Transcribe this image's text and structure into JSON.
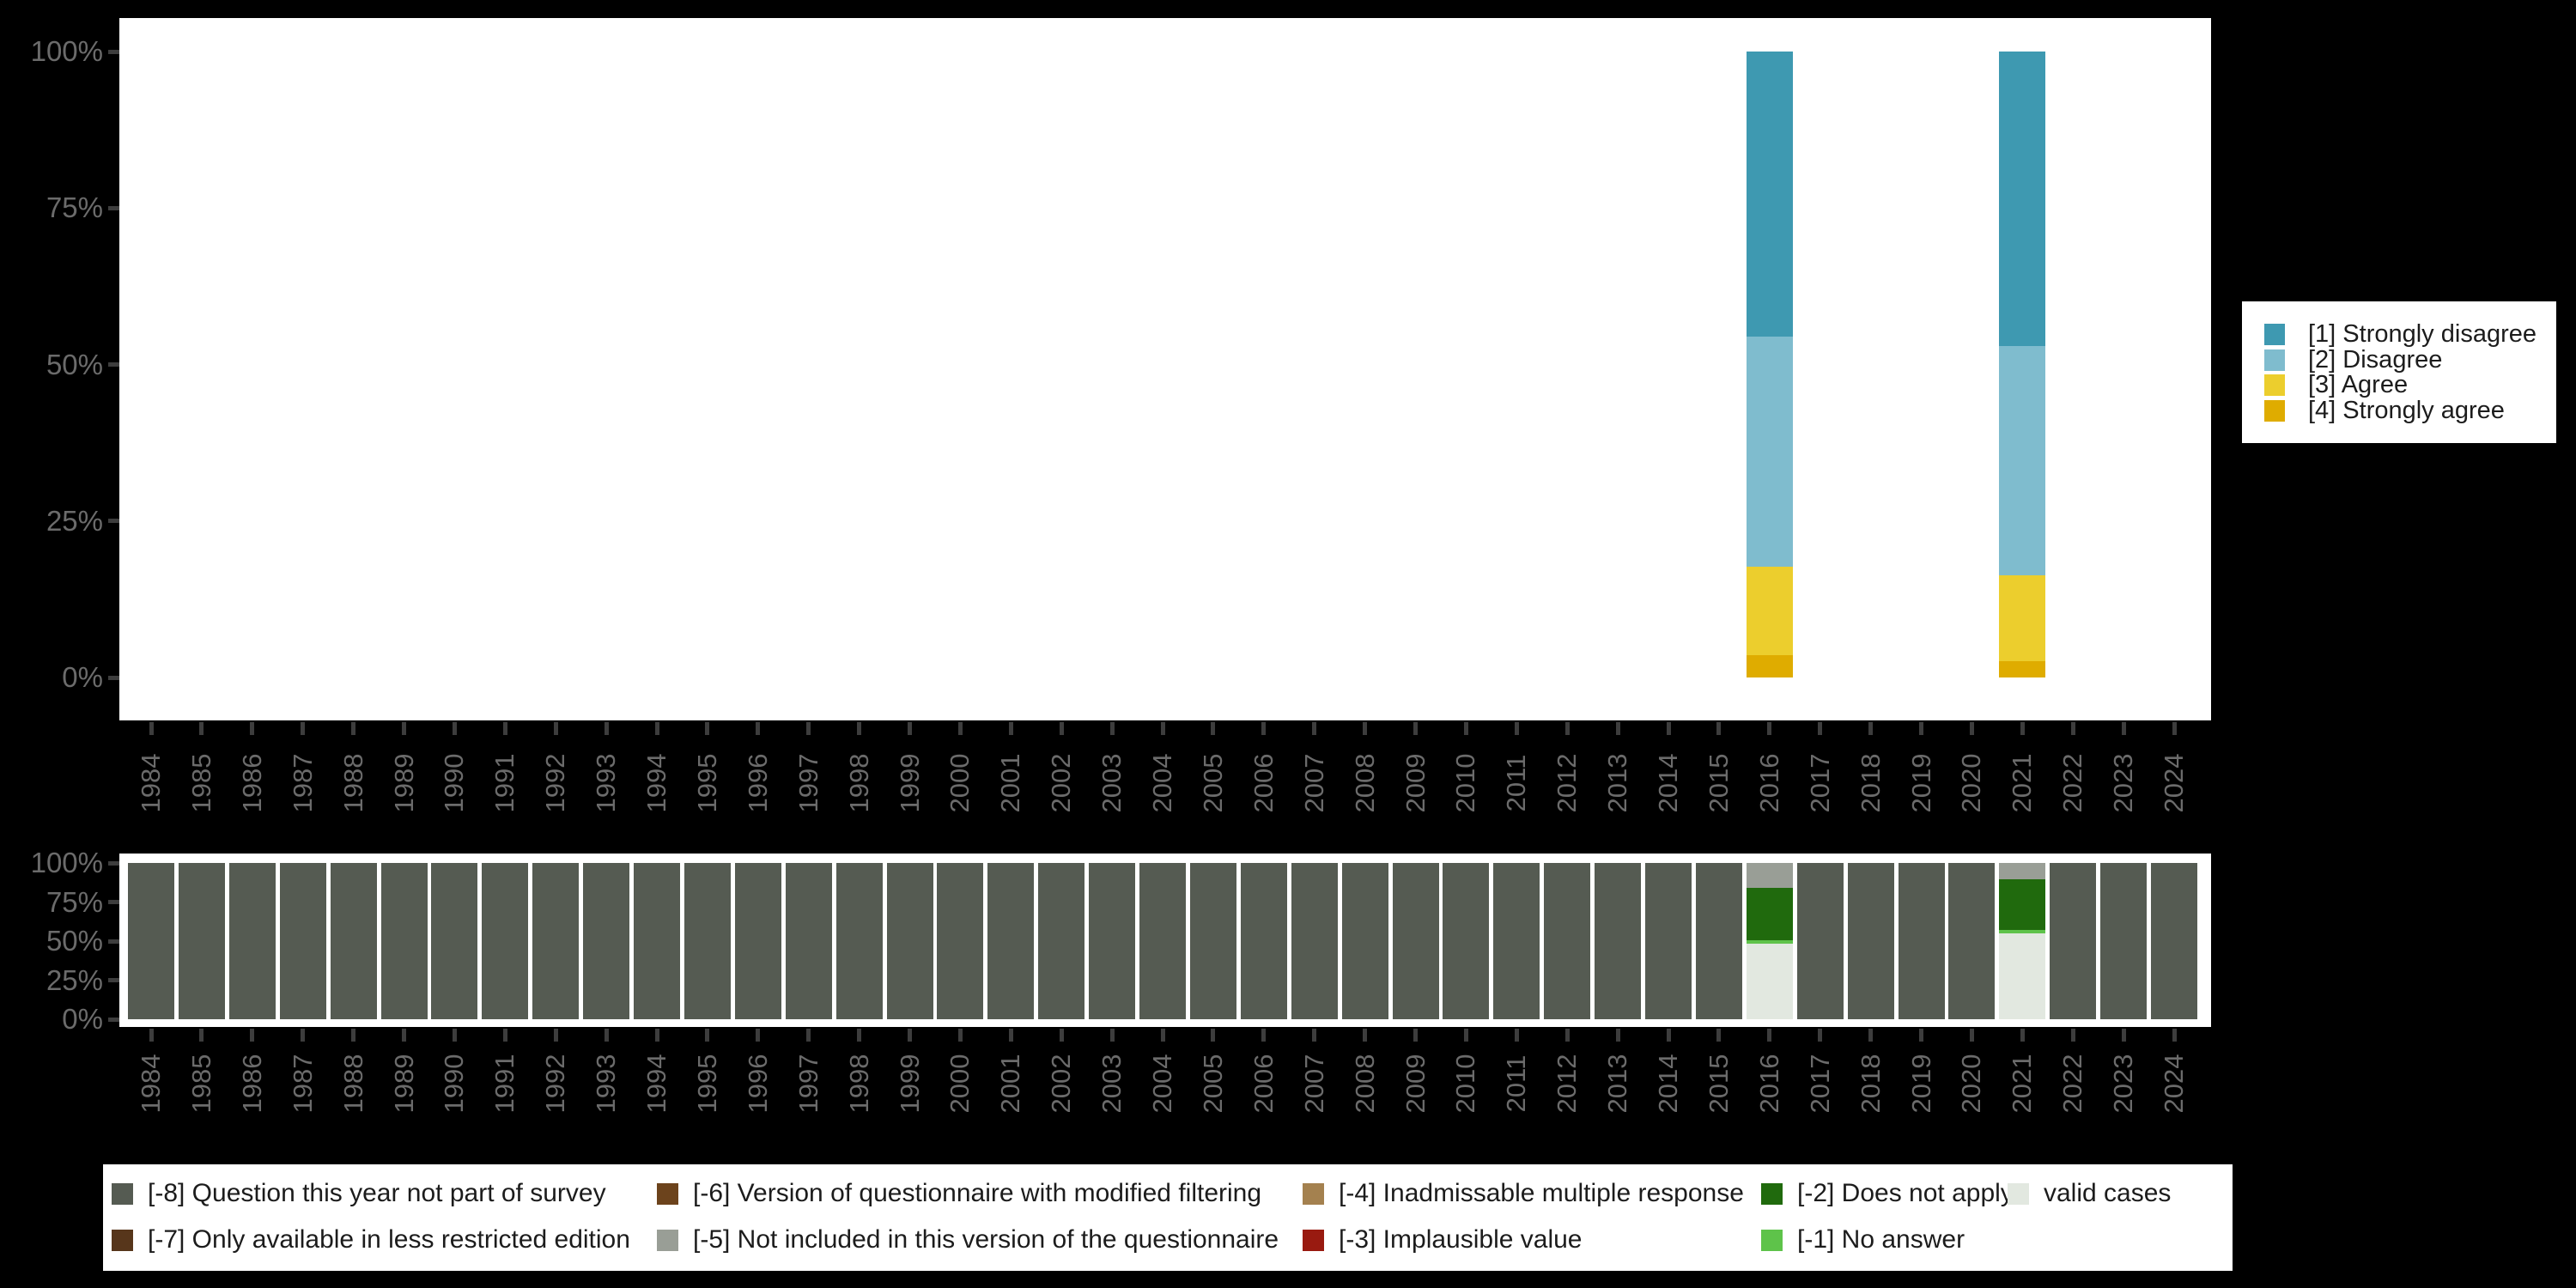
{
  "years": [
    "1984",
    "1985",
    "1986",
    "1987",
    "1988",
    "1989",
    "1990",
    "1991",
    "1992",
    "1993",
    "1994",
    "1995",
    "1996",
    "1997",
    "1998",
    "1999",
    "2000",
    "2001",
    "2002",
    "2003",
    "2004",
    "2005",
    "2006",
    "2007",
    "2008",
    "2009",
    "2010",
    "2011",
    "2012",
    "2013",
    "2014",
    "2015",
    "2016",
    "2017",
    "2018",
    "2019",
    "2020",
    "2021",
    "2022",
    "2023",
    "2024"
  ],
  "chart_data": [
    {
      "id": "response-distribution",
      "type": "bar",
      "stacked": true,
      "title": "",
      "xlabel": "",
      "ylabel": "",
      "ylim": [
        0,
        100
      ],
      "grid": false,
      "legend_position": "right",
      "x": [
        "1984",
        "1985",
        "1986",
        "1987",
        "1988",
        "1989",
        "1990",
        "1991",
        "1992",
        "1993",
        "1994",
        "1995",
        "1996",
        "1997",
        "1998",
        "1999",
        "2000",
        "2001",
        "2002",
        "2003",
        "2004",
        "2005",
        "2006",
        "2007",
        "2008",
        "2009",
        "2010",
        "2011",
        "2012",
        "2013",
        "2014",
        "2015",
        "2016",
        "2017",
        "2018",
        "2019",
        "2020",
        "2021",
        "2022",
        "2023",
        "2024"
      ],
      "y_ticks": [
        {
          "label": "100%",
          "value": 100
        },
        {
          "label": "75%",
          "value": 75
        },
        {
          "label": "50%",
          "value": 50
        },
        {
          "label": "25%",
          "value": 25
        },
        {
          "label": "0%",
          "value": 0
        }
      ],
      "series": [
        {
          "name": "[1] Strongly disagree",
          "color": "#3e99b1",
          "values": {
            "2016": 45.6,
            "2021": 47.0
          }
        },
        {
          "name": "[2] Disagree",
          "color": "#7fbcce",
          "values": {
            "2016": 36.7,
            "2021": 36.7
          }
        },
        {
          "name": "[3] Agree",
          "color": "#ecce2d",
          "values": {
            "2016": 14.2,
            "2021": 13.7
          }
        },
        {
          "name": "[4] Strongly agree",
          "color": "#dfac00",
          "values": {
            "2016": 3.5,
            "2021": 2.6
          }
        }
      ]
    },
    {
      "id": "missing-values-distribution",
      "type": "bar",
      "stacked": true,
      "title": "",
      "xlabel": "",
      "ylabel": "",
      "ylim": [
        0,
        100
      ],
      "grid": false,
      "legend_position": "bottom",
      "x": [
        "1984",
        "1985",
        "1986",
        "1987",
        "1988",
        "1989",
        "1990",
        "1991",
        "1992",
        "1993",
        "1994",
        "1995",
        "1996",
        "1997",
        "1998",
        "1999",
        "2000",
        "2001",
        "2002",
        "2003",
        "2004",
        "2005",
        "2006",
        "2007",
        "2008",
        "2009",
        "2010",
        "2011",
        "2012",
        "2013",
        "2014",
        "2015",
        "2016",
        "2017",
        "2018",
        "2019",
        "2020",
        "2021",
        "2022",
        "2023",
        "2024"
      ],
      "y_ticks": [
        {
          "label": "100%",
          "value": 100
        },
        {
          "label": "75%",
          "value": 75
        },
        {
          "label": "50%",
          "value": 50
        },
        {
          "label": "25%",
          "value": 25
        },
        {
          "label": "0%",
          "value": 0
        }
      ],
      "series": [
        {
          "name": "[-8] Question this year not part of survey",
          "color": "#555b52",
          "default_value": 100,
          "values": {
            "2016": 0,
            "2021": 0
          }
        },
        {
          "name": "[-7] Only available in less restricted edition",
          "color": "#57361b",
          "default_value": 0,
          "values": {}
        },
        {
          "name": "[-6] Version of questionnaire with modified filtering",
          "color": "#6c431c",
          "default_value": 0,
          "values": {}
        },
        {
          "name": "[-5] Not included in this version of the questionnaire",
          "color": "#999e96",
          "default_value": 0,
          "values": {
            "2016": 15.7,
            "2021": 10.6
          }
        },
        {
          "name": "[-4] Inadmissable multiple response",
          "color": "#a4814f",
          "default_value": 0,
          "values": {}
        },
        {
          "name": "[-3] Implausible value",
          "color": "#991a10",
          "default_value": 0,
          "values": {}
        },
        {
          "name": "[-2] Does not apply",
          "color": "#206a0d",
          "default_value": 0,
          "values": {
            "2016": 33.5,
            "2021": 32.0
          }
        },
        {
          "name": "[-1] No answer",
          "color": "#5ec34a",
          "default_value": 0,
          "values": {
            "2016": 2.2,
            "2021": 2.7
          }
        },
        {
          "name": "valid cases",
          "color": "#e2e8e0",
          "default_value": 0,
          "values": {
            "2016": 48.6,
            "2021": 54.7
          }
        }
      ],
      "legend_columns": [
        [
          0,
          1
        ],
        [
          2,
          3
        ],
        [
          4,
          5
        ],
        [
          6,
          7
        ],
        [
          8
        ]
      ]
    }
  ]
}
